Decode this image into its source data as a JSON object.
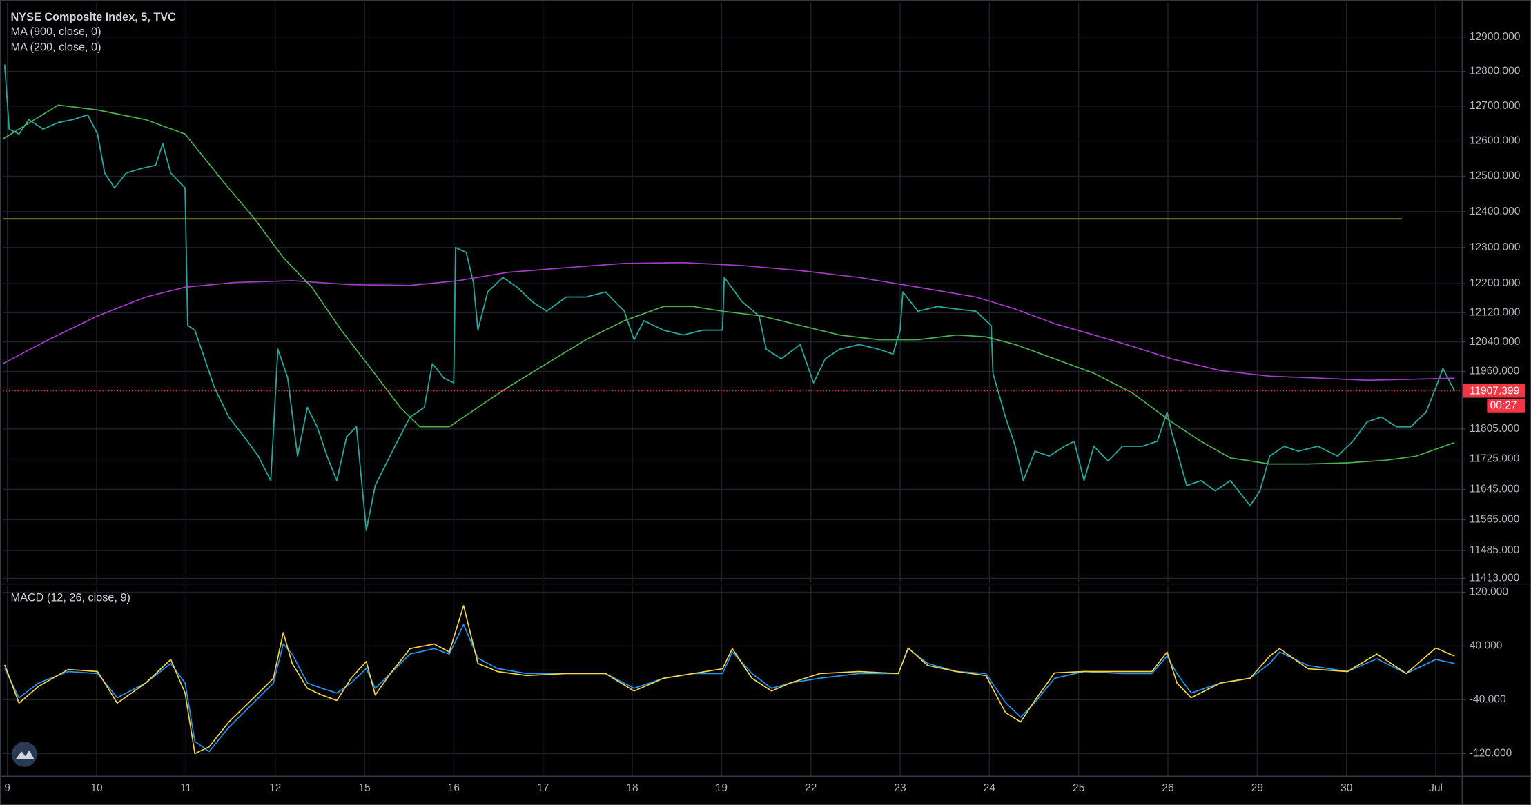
{
  "chart_data": [
    {
      "type": "line",
      "log_scale": true,
      "grid": true,
      "xlim": [
        -0.05,
        16.29
      ],
      "ylim": [
        11402,
        13000
      ],
      "yticks": [
        {
          "value": 12900,
          "label": "12900.000"
        },
        {
          "value": 12800,
          "label": "12800.000"
        },
        {
          "value": 12700,
          "label": "12700.000"
        },
        {
          "value": 12600,
          "label": "12600.000"
        },
        {
          "value": 12500,
          "label": "12500.000"
        },
        {
          "value": 12400,
          "label": "12400.000"
        },
        {
          "value": 12300,
          "label": "12300.000"
        },
        {
          "value": 12200,
          "label": "12200.000"
        },
        {
          "value": 12120,
          "label": "12120.000"
        },
        {
          "value": 12040,
          "label": "12040.000"
        },
        {
          "value": 11960,
          "label": "11960.000"
        },
        {
          "value": 11805,
          "label": "11805.000"
        },
        {
          "value": 11725,
          "label": "11725.000"
        },
        {
          "value": 11645,
          "label": "11645.000"
        },
        {
          "value": 11565,
          "label": "11565.000"
        },
        {
          "value": 11485,
          "label": "11485.000"
        },
        {
          "value": 11413,
          "label": "11413.000"
        }
      ],
      "series": [
        {
          "name": "NYSE Composite Index, 5, TVC",
          "color": "#26a69a",
          "x": [
            -0.03,
            0.02,
            0.13,
            0.24,
            0.4,
            0.57,
            0.73,
            0.9,
            1.01,
            1.09,
            1.2,
            1.33,
            1.5,
            1.66,
            1.74,
            1.83,
            1.99,
            2.02,
            2.1,
            2.21,
            2.32,
            2.48,
            2.65,
            2.81,
            2.95,
            3.03,
            3.14,
            3.25,
            3.36,
            3.47,
            3.58,
            3.69,
            3.8,
            3.91,
            4.02,
            4.12,
            4.23,
            4.34,
            4.51,
            4.67,
            4.76,
            4.89,
            5.0,
            5.02,
            5.14,
            5.22,
            5.27,
            5.38,
            5.55,
            5.71,
            5.88,
            6.04,
            6.26,
            6.48,
            6.7,
            6.91,
            7.02,
            7.13,
            7.35,
            7.57,
            7.79,
            8.01,
            8.03,
            8.23,
            8.42,
            8.5,
            8.67,
            8.88,
            9.03,
            9.16,
            9.32,
            9.54,
            9.76,
            9.92,
            10.0,
            10.03,
            10.2,
            10.42,
            10.63,
            10.85,
            11.02,
            11.04,
            11.18,
            11.29,
            11.38,
            11.51,
            11.67,
            11.84,
            11.95,
            12.06,
            12.17,
            12.33,
            12.49,
            12.71,
            12.88,
            12.99,
            13.04,
            13.21,
            13.37,
            13.53,
            13.7,
            13.92,
            14.03,
            14.14,
            14.3,
            14.46,
            14.68,
            14.9,
            15.07,
            15.23,
            15.39,
            15.56,
            15.72,
            15.89,
            16.0,
            16.08,
            16.21
          ],
          "values": [
            12820,
            12634,
            12620,
            12661,
            12634,
            12653,
            12661,
            12675,
            12620,
            12509,
            12467,
            12509,
            12522,
            12531,
            12592,
            12509,
            12467,
            12085,
            12072,
            11994,
            11916,
            11837,
            11785,
            11733,
            11668,
            12020,
            11942,
            11733,
            11863,
            11811,
            11733,
            11668,
            11785,
            11811,
            11537,
            11655,
            11707,
            11759,
            11837,
            11863,
            11981,
            11942,
            11929,
            12300,
            12286,
            12203,
            12072,
            12177,
            12217,
            12190,
            12150,
            12124,
            12163,
            12163,
            12177,
            12124,
            12046,
            12098,
            12072,
            12059,
            12072,
            12072,
            12217,
            12150,
            12111,
            12020,
            11994,
            12033,
            11929,
            11994,
            12020,
            12033,
            12020,
            12007,
            12072,
            12177,
            12124,
            12137,
            12130,
            12124,
            12085,
            11955,
            11837,
            11759,
            11668,
            11746,
            11733,
            11759,
            11772,
            11668,
            11759,
            11720,
            11759,
            11759,
            11772,
            11850,
            11798,
            11655,
            11668,
            11641,
            11668,
            11602,
            11641,
            11733,
            11759,
            11746,
            11759,
            11733,
            11772,
            11824,
            11837,
            11811,
            11811,
            11850,
            11916,
            11968,
            11907
          ]
        },
        {
          "name": "MA (900, close, 0)",
          "color": "#a23cc8",
          "x": [
            -0.05,
            0.46,
            1.01,
            1.55,
            1.99,
            2.54,
            3.19,
            3.85,
            4.51,
            5.05,
            5.6,
            6.26,
            6.91,
            7.57,
            8.23,
            8.88,
            9.54,
            10.2,
            10.85,
            11.29,
            11.73,
            12.17,
            12.6,
            13.04,
            13.59,
            14.14,
            14.68,
            15.23,
            15.78,
            16.21
          ],
          "values": [
            11981,
            12046,
            12111,
            12163,
            12190,
            12203,
            12208,
            12197,
            12195,
            12208,
            12231,
            12244,
            12256,
            12258,
            12250,
            12236,
            12217,
            12190,
            12163,
            12130,
            12090,
            12059,
            12028,
            11994,
            11962,
            11947,
            11942,
            11936,
            11939,
            11942
          ]
        },
        {
          "name": "MA (200, close, 0)",
          "color": "#4caf50",
          "x": [
            -0.05,
            0.57,
            1.01,
            1.55,
            1.99,
            2.43,
            2.76,
            3.09,
            3.41,
            3.74,
            4.07,
            4.4,
            4.62,
            4.95,
            5.27,
            5.6,
            6.04,
            6.48,
            6.91,
            7.35,
            7.68,
            8.01,
            8.45,
            8.88,
            9.32,
            9.76,
            10.2,
            10.63,
            10.96,
            11.29,
            11.73,
            12.17,
            12.6,
            13.04,
            13.37,
            13.7,
            14.14,
            14.57,
            15.01,
            15.45,
            15.78,
            16.21
          ],
          "values": [
            12606,
            12703,
            12689,
            12661,
            12620,
            12481,
            12383,
            12272,
            12190,
            12072,
            11968,
            11863,
            11811,
            11811,
            11863,
            11916,
            11981,
            12046,
            12098,
            12137,
            12137,
            12124,
            12111,
            12085,
            12059,
            12046,
            12046,
            12059,
            12054,
            12033,
            11994,
            11955,
            11902,
            11824,
            11772,
            11728,
            11712,
            11712,
            11715,
            11722,
            11733,
            11769
          ]
        }
      ],
      "hline": {
        "value": 12380,
        "color": "#e0c040",
        "x": [
          -0.05,
          15.62
        ]
      },
      "last_price": {
        "value": 11907.399,
        "color": "#f23645"
      },
      "countdown": "00:27"
    },
    {
      "type": "line",
      "title": "MACD (12, 26, close, 9)",
      "grid": true,
      "xlim": [
        -0.05,
        16.29
      ],
      "ylim": [
        -153,
        130
      ],
      "xticks": [
        {
          "value": 0,
          "label": "9"
        },
        {
          "value": 1,
          "label": "10"
        },
        {
          "value": 2,
          "label": "11"
        },
        {
          "value": 3,
          "label": "12"
        },
        {
          "value": 4,
          "label": "15"
        },
        {
          "value": 5,
          "label": "16"
        },
        {
          "value": 6,
          "label": "17"
        },
        {
          "value": 7,
          "label": "18"
        },
        {
          "value": 8,
          "label": "19"
        },
        {
          "value": 9,
          "label": "22"
        },
        {
          "value": 10,
          "label": "23"
        },
        {
          "value": 11,
          "label": "24"
        },
        {
          "value": 12,
          "label": "25"
        },
        {
          "value": 13,
          "label": "26"
        },
        {
          "value": 14,
          "label": "29"
        },
        {
          "value": 15,
          "label": "30"
        },
        {
          "value": 16,
          "label": "Jul"
        }
      ],
      "yticks": [
        {
          "value": 120,
          "label": "120.000"
        },
        {
          "value": 40,
          "label": "40.000"
        },
        {
          "value": -40,
          "label": "-40.000"
        },
        {
          "value": -120,
          "label": "-120.000"
        }
      ],
      "x": [
        -0.03,
        0.13,
        0.35,
        0.68,
        1.01,
        1.23,
        1.55,
        1.83,
        1.99,
        2.1,
        2.26,
        2.48,
        2.76,
        2.98,
        3.09,
        3.19,
        3.36,
        3.52,
        3.69,
        3.85,
        4.02,
        4.12,
        4.29,
        4.51,
        4.78,
        4.95,
        5.11,
        5.27,
        5.49,
        5.82,
        6.26,
        6.7,
        7.02,
        7.35,
        7.68,
        8.01,
        8.12,
        8.34,
        8.56,
        8.77,
        9.1,
        9.54,
        9.98,
        10.09,
        10.31,
        10.63,
        10.96,
        11.18,
        11.35,
        11.51,
        11.73,
        12.06,
        12.49,
        12.82,
        12.99,
        13.1,
        13.26,
        13.59,
        13.92,
        14.14,
        14.25,
        14.57,
        15.01,
        15.34,
        15.67,
        16.0,
        16.21
      ],
      "series": [
        {
          "color": "#2196f3",
          "values": [
            6.5,
            -37,
            -15,
            2,
            -1,
            -37,
            -15,
            14,
            -15,
            -102,
            -117,
            -81,
            -44,
            -15,
            43,
            28,
            -15,
            -23,
            -30,
            -15,
            6.5,
            -23,
            -1,
            28,
            36,
            28,
            72,
            22,
            6.5,
            -1,
            -1,
            -1,
            -23,
            -8,
            -1,
            -1,
            31,
            -1,
            -23,
            -15,
            -8,
            -1,
            -1,
            36,
            14,
            2,
            -1,
            -44,
            -66,
            -44,
            -8,
            2,
            -1,
            -1,
            25,
            -1,
            -30,
            -15,
            -8,
            14,
            31,
            11,
            2,
            21,
            -1,
            20,
            14
          ]
        },
        {
          "color": "#f5d442",
          "values": [
            12,
            -45,
            -20,
            5,
            2,
            -45,
            -15,
            20,
            -30,
            -120,
            -110,
            -73,
            -37,
            -8,
            60,
            14,
            -23,
            -33,
            -41,
            -8,
            17,
            -33,
            -1,
            36,
            43,
            31,
            100,
            14,
            2,
            -4,
            -1,
            -1,
            -27,
            -8,
            -1,
            6,
            36,
            -8,
            -27,
            -15,
            -1,
            2,
            -1,
            37,
            11,
            2,
            -4,
            -59,
            -73,
            -41,
            0,
            2,
            2,
            2,
            31,
            -15,
            -37,
            -15,
            -8,
            25,
            36,
            6,
            2,
            28,
            -1,
            37,
            25
          ]
        }
      ]
    }
  ]
}
